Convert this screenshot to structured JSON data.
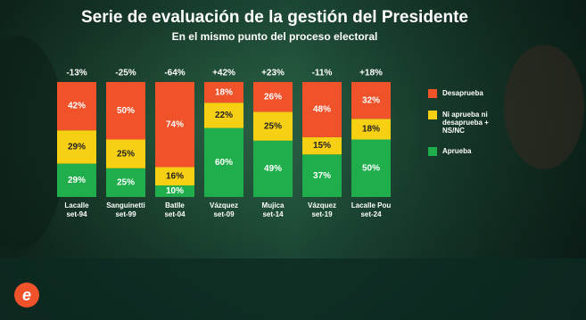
{
  "chart_data": {
    "type": "stacked_bar",
    "title": "Serie de evaluación de la gestión del Presidente",
    "subtitle": "En el mismo punto del proceso electoral",
    "categories": [
      [
        "Lacalle",
        "set-94"
      ],
      [
        "Sanguinetti",
        "set-99"
      ],
      [
        "Batlle",
        "set-04"
      ],
      [
        "Vázquez",
        "set-09"
      ],
      [
        "Mujica",
        "set-14"
      ],
      [
        "Vázquez",
        "set-19"
      ],
      [
        "Lacalle Pou",
        "set-24"
      ]
    ],
    "net_labels": [
      "-13%",
      "-25%",
      "-64%",
      "+42%",
      "+23%",
      "-11%",
      "+18%"
    ],
    "ylim": [
      0,
      100
    ],
    "series": [
      {
        "name": "Aprueba",
        "color": "#1fae4b",
        "values": [
          29,
          25,
          10,
          60,
          49,
          37,
          50
        ],
        "value_labels": [
          "29%",
          "25%",
          "10%",
          "60%",
          "49%",
          "37%",
          "50%"
        ]
      },
      {
        "name": "Ni aprueba ni desaprueba + NS/NC",
        "color": "#f7cf13",
        "values": [
          29,
          25,
          16,
          22,
          25,
          15,
          18
        ],
        "value_labels": [
          "29%",
          "25%",
          "16%",
          "22%",
          "25%",
          "15%",
          "18%"
        ]
      },
      {
        "name": "Desaprueba",
        "color": "#f0522a",
        "values": [
          42,
          50,
          74,
          18,
          26,
          48,
          32
        ],
        "value_labels": [
          "42%",
          "50%",
          "74%",
          "18%",
          "26%",
          "48%",
          "32%"
        ]
      }
    ],
    "legend_order": [
      2,
      1,
      0
    ]
  }
}
